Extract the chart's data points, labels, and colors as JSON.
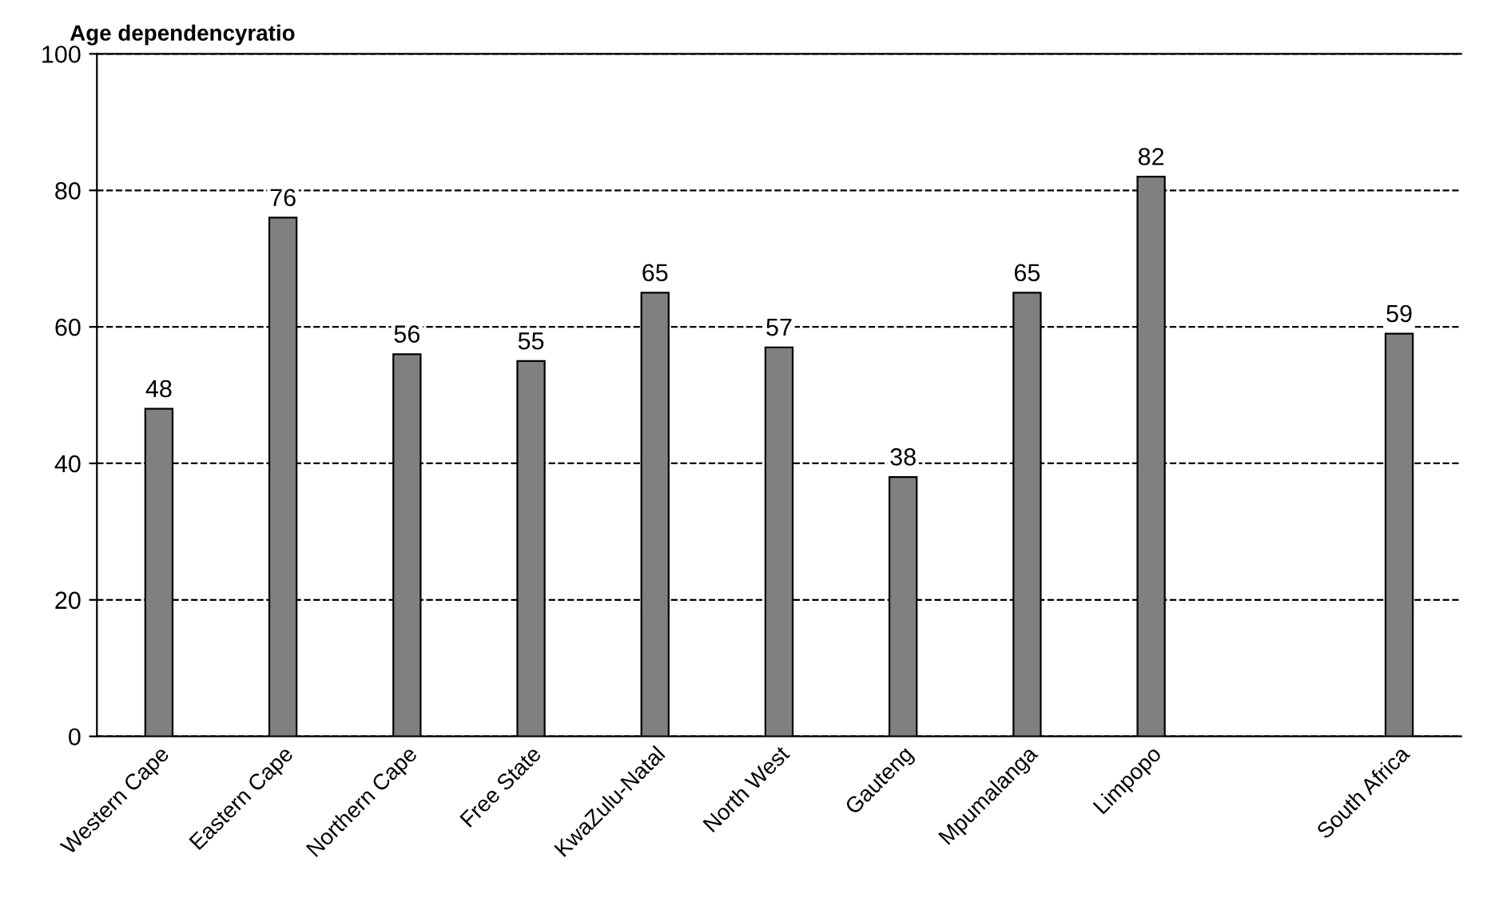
{
  "chart_data": {
    "type": "bar",
    "title": "Age dependencyratio",
    "categories": [
      "Western Cape",
      "Eastern Cape",
      "Northern Cape",
      "Free State",
      "KwaZulu-Natal",
      "North West",
      "Gauteng",
      "Mpumalanga",
      "Limpopo",
      null,
      "South Africa"
    ],
    "values": [
      48,
      76,
      56,
      55,
      65,
      57,
      38,
      65,
      82,
      null,
      59
    ],
    "color": "#808080",
    "ylim": [
      0,
      100
    ],
    "yticks": [
      0,
      20,
      40,
      60,
      80,
      100
    ],
    "grid": "y",
    "data_labels": true
  }
}
